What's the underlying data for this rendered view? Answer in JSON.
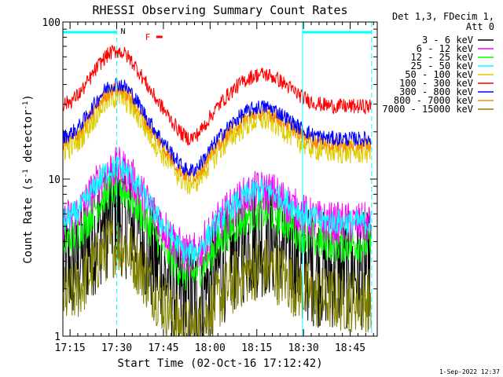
{
  "chart_data": {
    "type": "line",
    "title": "RHESSI Observing Summary Count Rates",
    "xlabel": "Start Time (02-Oct-16 17:12:42)",
    "ylabel": "Count Rate (s",
    "ylabel_sup": "-1",
    "ylabel_tail": " detector",
    "ylabel_tail_sup": "-1",
    "ylabel_close": ")",
    "yscale": "log",
    "ylim": [
      1,
      100
    ],
    "xlim_minutes": [
      0,
      101
    ],
    "x_ticks": [
      {
        "label": "17:15",
        "min": 2.3
      },
      {
        "label": "17:30",
        "min": 17.3
      },
      {
        "label": "17:45",
        "min": 32.3
      },
      {
        "label": "18:00",
        "min": 47.3
      },
      {
        "label": "18:15",
        "min": 62.3
      },
      {
        "label": "18:30",
        "min": 77.3
      },
      {
        "label": "18:45",
        "min": 92.3
      }
    ],
    "y_ticks": [
      {
        "label": "1",
        "value": 1
      },
      {
        "label": "10",
        "value": 10
      },
      {
        "label": "100",
        "value": 100
      }
    ],
    "legend_header": [
      "Det 1,3, FDecim 1,",
      "Att 0"
    ],
    "legend_placement": "right",
    "series": [
      {
        "name": "3 - 6 keV",
        "color": "#000000",
        "level": 2.6,
        "noise": 0.55
      },
      {
        "name": "6 - 12 keV",
        "color": "#ff00ff",
        "level": 5.2,
        "noise": 0.2
      },
      {
        "name": "12 - 25 keV",
        "color": "#00ff00",
        "level": 3.9,
        "noise": 0.18
      },
      {
        "name": "25 - 50 keV",
        "color": "#00ffff",
        "level": 5.3,
        "noise": 0.12
      },
      {
        "name": "50 - 100 keV",
        "color": "#ddcc00",
        "level": 15,
        "noise": 0.12
      },
      {
        "name": "100 - 300 keV",
        "color": "#ff0000",
        "level": 29,
        "noise": 0.07
      },
      {
        "name": "300 - 800 keV",
        "color": "#0000ff",
        "level": 18,
        "noise": 0.07
      },
      {
        "name": "800 - 7000 keV",
        "color": "#ff8800",
        "level": 16.5,
        "noise": 0.07
      },
      {
        "name": "7000 - 15000 keV",
        "color": "#808000",
        "level": 1.7,
        "noise": 0.3
      }
    ],
    "series_shape": {
      "peak1_min": 17.3,
      "peak1_factor": 2.25,
      "dip_min": 41.0,
      "dip_factor": 0.62,
      "peak2_min": 64.0,
      "peak2_factor": 1.6
    },
    "flags": [
      {
        "label": "N",
        "color": "#00ffff",
        "start_min": 0,
        "end_min": 17.3
      },
      {
        "label": "",
        "color": "#00ffff",
        "start_min": 77.0,
        "end_min": 99.2
      }
    ],
    "flare_flag": {
      "label": "F",
      "color": "#ff0000",
      "min": 30.5
    },
    "markers_min": [
      0,
      17.3,
      77.0,
      99.2
    ]
  },
  "footer_timestamp": "1-Sep-2022 12:37"
}
